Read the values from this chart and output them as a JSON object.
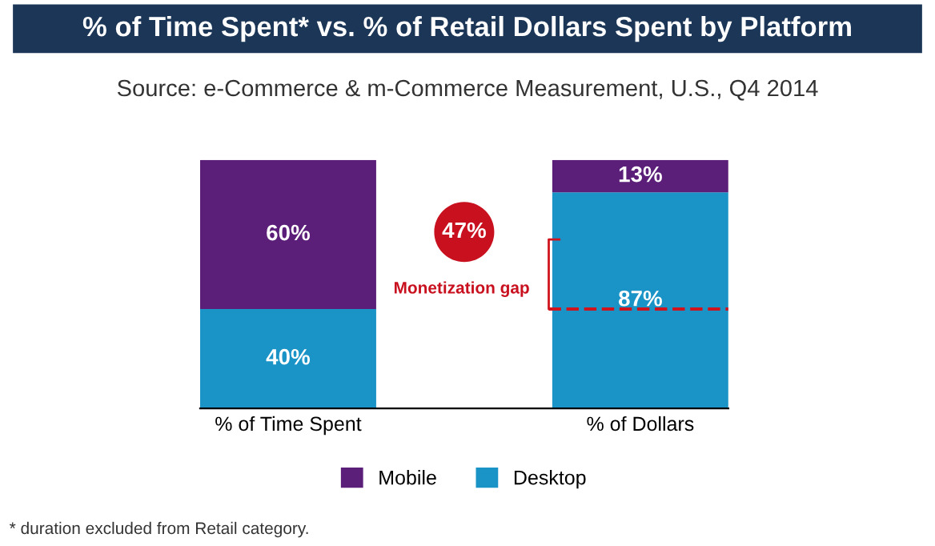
{
  "chart_data": {
    "type": "bar",
    "stacked": true,
    "title": "% of Time Spent* vs. % of Retail Dollars Spent by Platform",
    "subtitle": "Source: e-Commerce & m-Commerce Measurement, U.S., Q4 2014",
    "categories": [
      "% of Time Spent",
      "% of Dollars"
    ],
    "series": [
      {
        "name": "Desktop",
        "color": "#1a93c6",
        "values": [
          40,
          87
        ],
        "value_labels": [
          "40%",
          "87%"
        ]
      },
      {
        "name": "Mobile",
        "color": "#5b1f79",
        "values": [
          60,
          13
        ],
        "value_labels": [
          "60%",
          "13%"
        ]
      }
    ],
    "annotations": [
      "47%",
      "Monetization gap",
      "* duration excluded from Retail category."
    ],
    "legend": "bottom",
    "grid": false
  }
}
